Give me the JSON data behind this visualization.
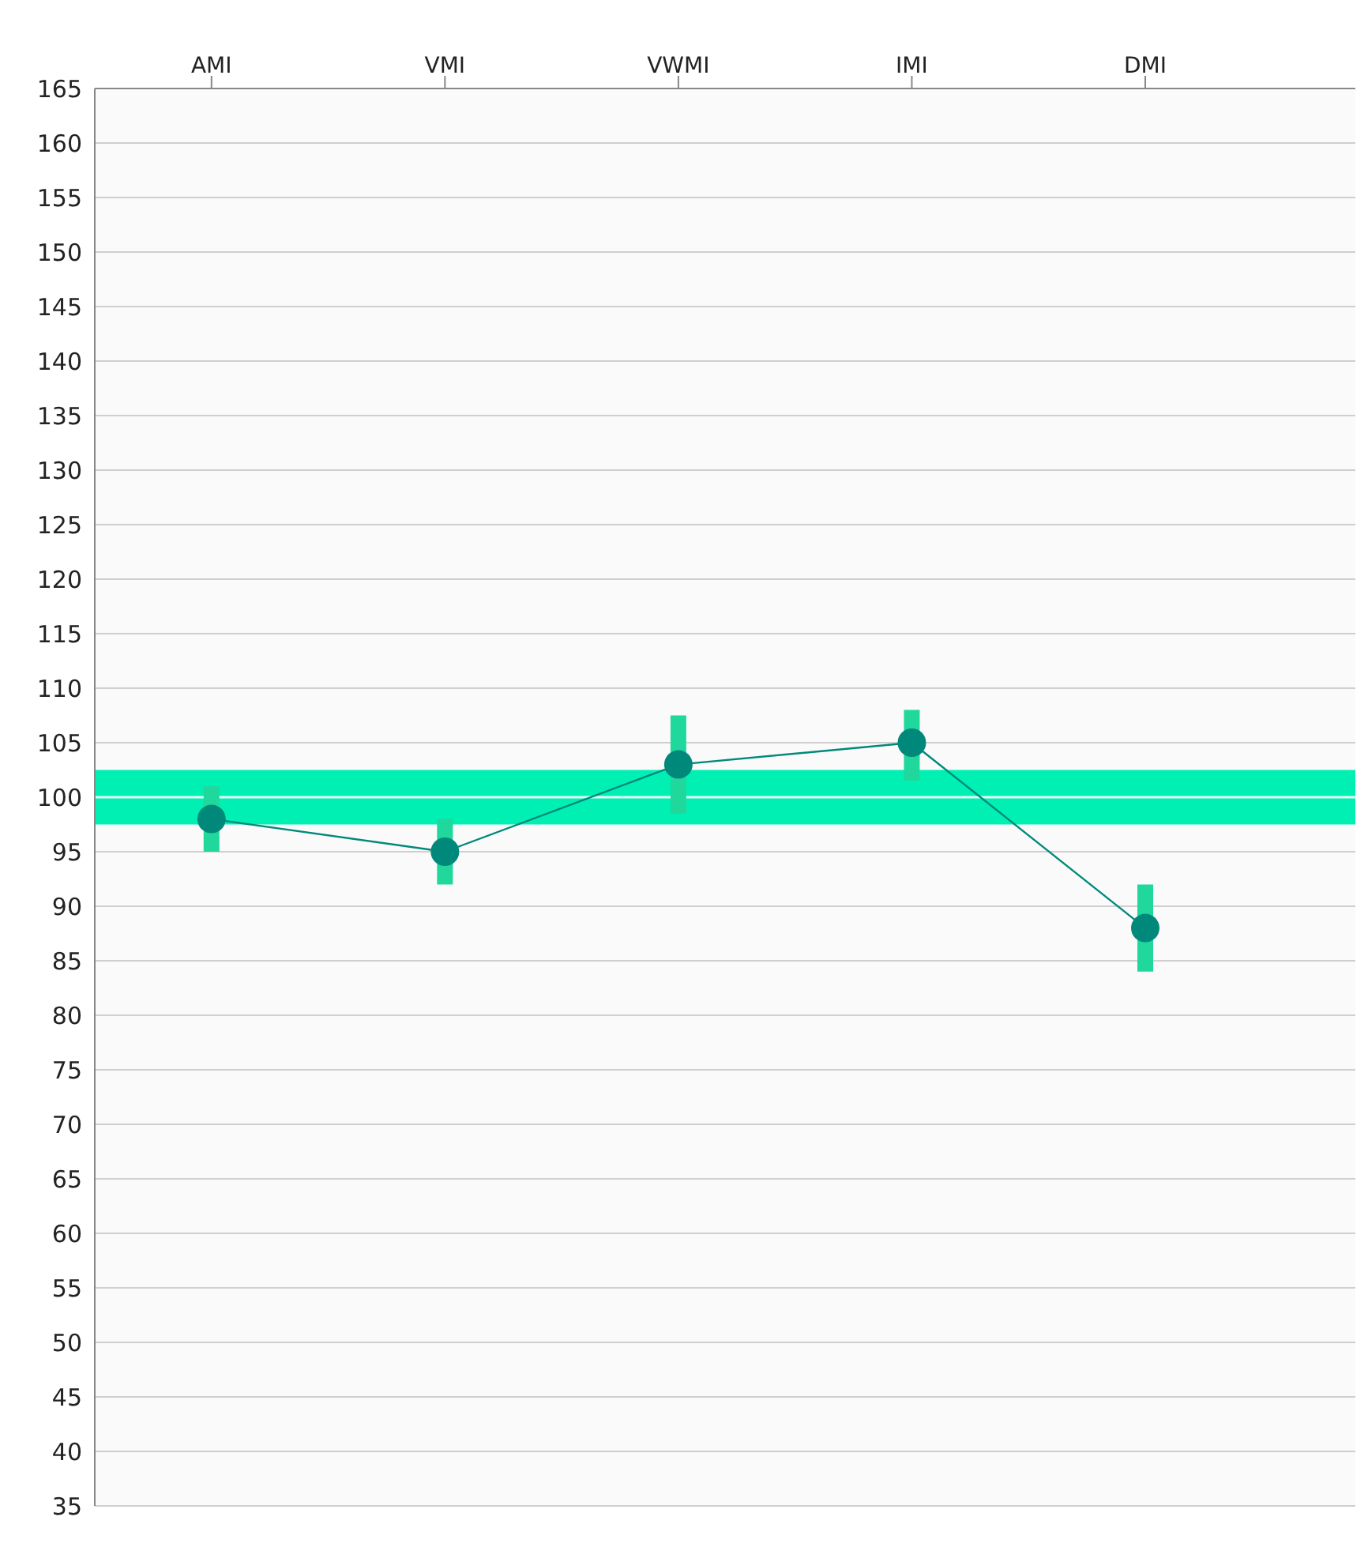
{
  "chart_data": {
    "type": "line",
    "categories": [
      "AMI",
      "VMI",
      "VWMI",
      "IMI",
      "DMI"
    ],
    "series": [
      {
        "color": "#00897b",
        "values": [
          98,
          95,
          103,
          105,
          88
        ],
        "errors": [
          [
            95,
            101
          ],
          [
            92,
            98
          ],
          [
            98.5,
            107.5
          ],
          [
            101.5,
            108
          ],
          [
            84,
            92
          ]
        ]
      }
    ],
    "ylim": [
      35,
      165
    ],
    "yticks": [
      35,
      40,
      45,
      50,
      55,
      60,
      65,
      70,
      75,
      80,
      85,
      90,
      95,
      100,
      105,
      110,
      115,
      120,
      125,
      130,
      135,
      140,
      145,
      150,
      155,
      160,
      165
    ],
    "bands": [
      {
        "axis": "y",
        "from": 97.5,
        "to": 102.5,
        "color": "#00f0b4"
      }
    ],
    "ref_lines": [
      {
        "axis": "y",
        "value": 100,
        "color": "#e8fff8"
      }
    ],
    "grid": "y",
    "marker": "circle",
    "line_style": "solid"
  }
}
